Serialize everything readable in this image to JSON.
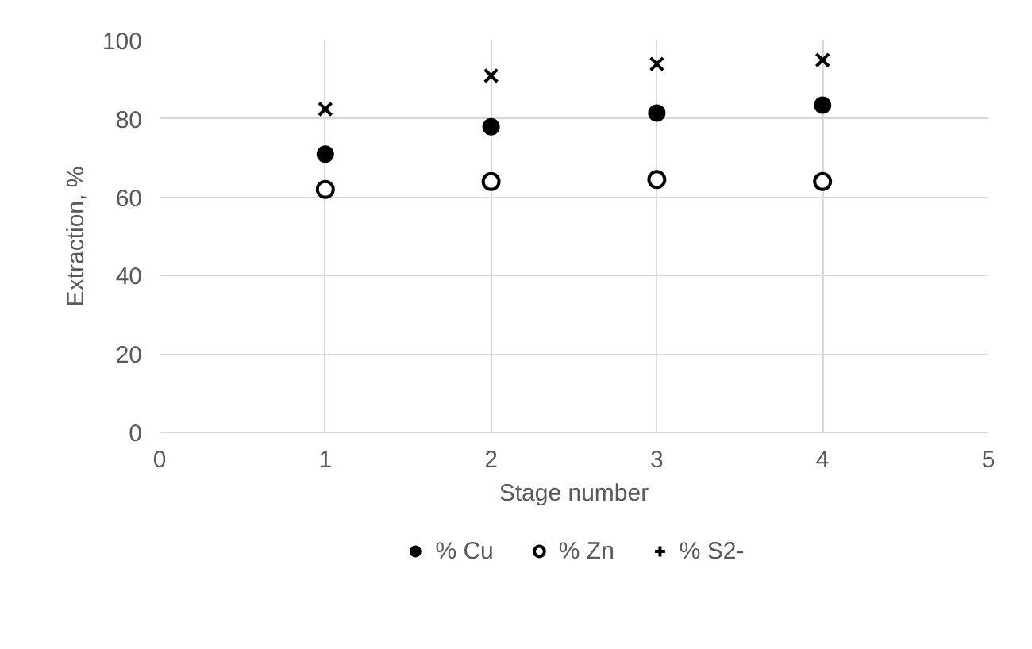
{
  "chart_data": {
    "type": "scatter",
    "xlabel": "Stage number",
    "ylabel": "Extraction, %",
    "x": [
      1,
      2,
      3,
      4
    ],
    "series": [
      {
        "name": "% Cu",
        "color": "#000000",
        "marker": "circle",
        "values": [
          71,
          78,
          81.5,
          83.5
        ]
      },
      {
        "name": "% Zn",
        "color": "#000000",
        "marker": "circle_open",
        "values": [
          62,
          64,
          64.5,
          64
        ]
      },
      {
        "name": "% S2-",
        "color": "#000000",
        "marker": "cross",
        "values": [
          82.5,
          91,
          94,
          95
        ]
      }
    ],
    "xlim": [
      0,
      5
    ],
    "xticks": [
      0,
      1,
      2,
      3,
      4,
      5
    ],
    "ylim": [
      0,
      100
    ],
    "yticks": [
      0,
      20,
      40,
      60,
      80,
      100
    ],
    "grid": true,
    "legend": "bottom"
  }
}
